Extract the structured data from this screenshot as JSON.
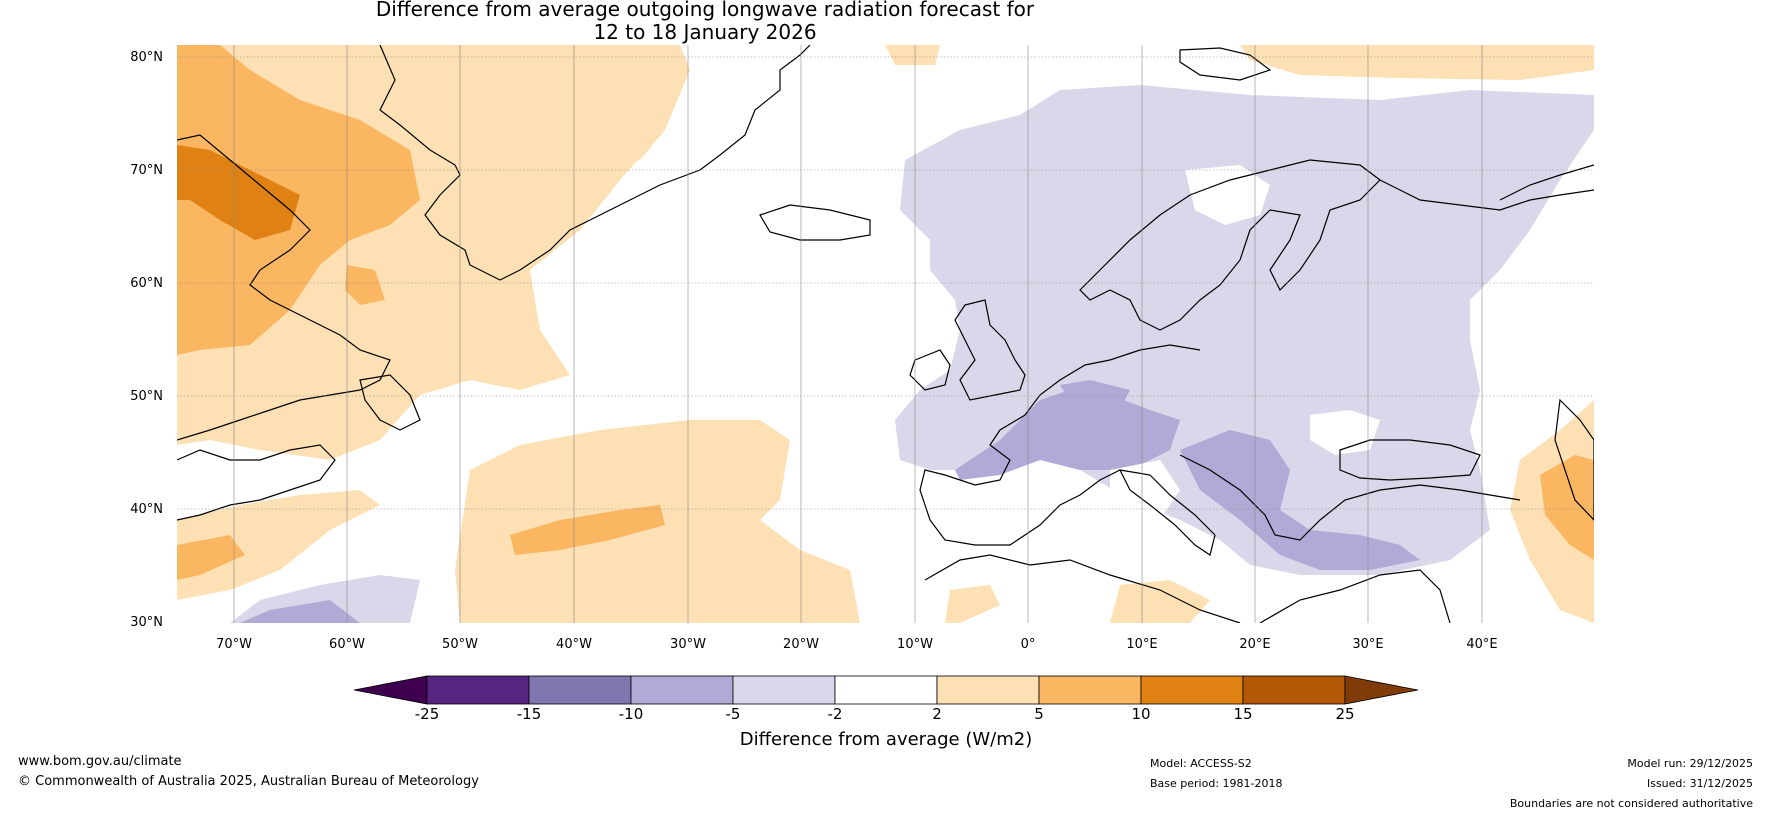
{
  "title": {
    "line1": "Difference from average outgoing longwave radiation forecast for",
    "line2": "12 to 18 January 2026"
  },
  "map": {
    "lat_labels": [
      "80°N",
      "70°N",
      "60°N",
      "50°N",
      "40°N",
      "30°N"
    ],
    "lon_labels": [
      "70°W",
      "60°W",
      "50°W",
      "40°W",
      "30°W",
      "20°W",
      "10°W",
      "0°",
      "10°E",
      "20°E",
      "30°E",
      "40°E"
    ]
  },
  "colorbar": {
    "label": "Difference from average (W/m2)",
    "ticks": [
      "-25",
      "-15",
      "-10",
      "-5",
      "-2",
      "2",
      "5",
      "10",
      "15",
      "25"
    ],
    "colors": {
      "lt_neg25": "#3f0050",
      "neg25_neg15": "#562580",
      "neg15_neg10": "#8076b0",
      "neg10_neg5": "#b1aad6",
      "neg5_neg2": "#d8d8ea",
      "neg2_2": "#ffffff",
      "p2_5": "#fde0b4",
      "p5_10": "#fbb661",
      "p10_15": "#e08213",
      "p15_25": "#b35806",
      "gt_25": "#7f3b08"
    }
  },
  "footer": {
    "website": "www.bom.gov.au/climate",
    "copyright": "© Commonwealth of Australia 2025, Australian Bureau of Meteorology",
    "model": "Model: ACCESS-S2",
    "base_period": "Base period: 1981-2018",
    "model_run": "Model run: 29/12/2025",
    "issued": "Issued: 31/12/2025",
    "disclaimer": "Boundaries are not considered authoritative"
  }
}
